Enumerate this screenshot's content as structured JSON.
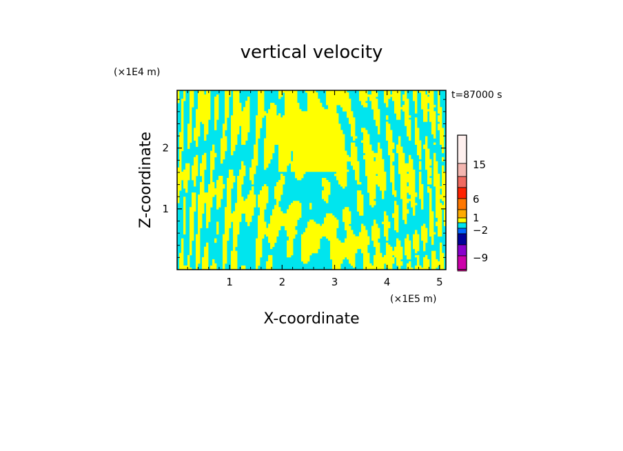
{
  "chart_data": {
    "type": "heatmap",
    "title": "vertical velocity",
    "xlabel": "X-coordinate",
    "ylabel": "Z-coordinate",
    "x_unit": "(×1E5 m)",
    "y_unit": "(×1E4 m)",
    "time_label": "t=87000 s",
    "xlim": [
      0,
      5.12
    ],
    "ylim": [
      0,
      2.95
    ],
    "x_ticks": [
      1,
      2,
      3,
      4,
      5
    ],
    "x_tick_labels": [
      "1",
      "2",
      "3",
      "4",
      "5"
    ],
    "y_ticks": [
      1,
      2
    ],
    "y_tick_labels": [
      "1",
      "2"
    ],
    "dominant_colors": {
      "positive": "#ffff00",
      "negative": "#00e5ee"
    },
    "colorbar": {
      "tick_labels": [
        "15",
        "6",
        "1",
        "−2",
        "−9"
      ],
      "tick_values": [
        15,
        6,
        1,
        -2,
        -9
      ],
      "levels": [
        {
          "color": "#fff0ee"
        },
        {
          "color": "#f4b6b0"
        },
        {
          "color": "#f06a60"
        },
        {
          "color": "#ff2200"
        },
        {
          "color": "#ff7700"
        },
        {
          "color": "#ffaa00"
        },
        {
          "color": "#ffff00"
        },
        {
          "color": "#00e5ee"
        },
        {
          "color": "#0066ff"
        },
        {
          "color": "#000099"
        },
        {
          "color": "#8800cc"
        },
        {
          "color": "#cc00aa"
        },
        {
          "color": "#ff00aa"
        }
      ]
    }
  }
}
